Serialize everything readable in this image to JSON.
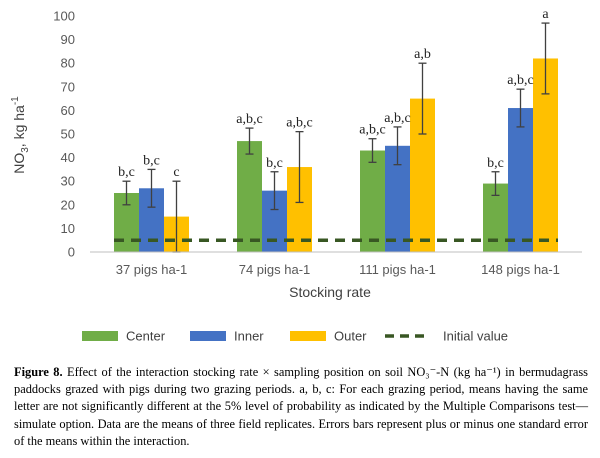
{
  "chart_data": {
    "type": "bar",
    "categories": [
      "37 pigs ha-1",
      "74 pigs ha-1",
      "111 pigs ha-1",
      "148 pigs ha-1"
    ],
    "series": [
      {
        "name": "Center",
        "color": "#70ad47",
        "values": [
          25,
          47,
          43,
          29
        ],
        "errors": [
          5,
          5.5,
          5,
          5
        ],
        "letters": [
          "b,c",
          "a,b,c",
          "a,b,c",
          "b,c"
        ]
      },
      {
        "name": "Inner",
        "color": "#4472c4",
        "values": [
          27,
          26,
          45,
          61
        ],
        "errors": [
          8,
          8,
          8,
          8
        ],
        "letters": [
          "b,c",
          "b,c",
          "a,b,c",
          "a,b,c"
        ]
      },
      {
        "name": "Outer",
        "color": "#ffc000",
        "values": [
          15,
          36,
          65,
          82
        ],
        "errors": [
          15,
          15,
          15,
          15
        ],
        "letters": [
          "c",
          "a,b,c",
          "a,b",
          "a"
        ]
      }
    ],
    "reference_line": {
      "name": "Initial value",
      "value": 5,
      "color": "#385723",
      "style": "dashed"
    },
    "xlabel": "Stocking rate",
    "ylabel_main": "NO",
    "ylabel_sub": "3",
    "ylabel_rest": ", kg ha",
    "ylabel_sup": "-1",
    "ylim": [
      0,
      100
    ],
    "yticks": [
      "0",
      "10",
      "20",
      "30",
      "40",
      "50",
      "60",
      "70",
      "80",
      "90",
      "100"
    ],
    "grid": false,
    "legend_position": "bottom"
  },
  "caption": {
    "label": "Figure 8.",
    "text": "Effect of the interaction stocking rate × sampling position on soil NO₃⁻-N (kg ha⁻¹) in bermudagrass paddocks grazed with pigs during two grazing periods. a, b, c: For each grazing period, means having the same letter are not significantly different at the 5% level of probability as indicated by the Multiple Comparisons test—simulate option. Data are the means of three field replicates. Errors bars represent plus or minus one standard error of the means within the interaction."
  }
}
